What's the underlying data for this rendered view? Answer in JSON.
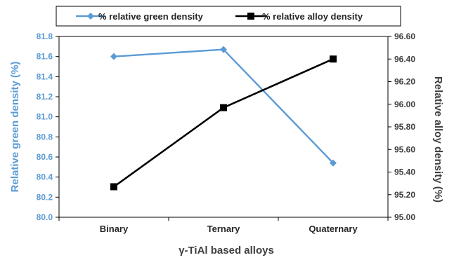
{
  "chart_data": {
    "type": "line",
    "categories": [
      "Binary",
      "Ternary",
      "Quaternary"
    ],
    "series": [
      {
        "name": "% relative green density",
        "axis": "left",
        "color": "#5b9bd5",
        "marker": "diamond",
        "values": [
          81.6,
          81.67,
          80.54
        ]
      },
      {
        "name": "% relative alloy density",
        "axis": "right",
        "color": "#000000",
        "marker": "square",
        "values": [
          95.27,
          95.97,
          96.4
        ]
      }
    ],
    "xlabel": "γ-TiAl based alloys",
    "ylabel_left": "Relative green density (%)",
    "ylabel_right": "Relative alloy density (%)",
    "ylim_left": [
      80.0,
      81.8
    ],
    "yticks_left": [
      "80.0",
      "80.2",
      "80.4",
      "80.6",
      "80.8",
      "81.0",
      "81.2",
      "81.4",
      "81.6",
      "81.8"
    ],
    "ylim_right": [
      95.0,
      96.6
    ],
    "yticks_right": [
      "95.00",
      "95.20",
      "95.40",
      "95.60",
      "95.80",
      "96.00",
      "96.20",
      "96.40",
      "96.60"
    ],
    "grid": false,
    "legend_position": "top"
  }
}
